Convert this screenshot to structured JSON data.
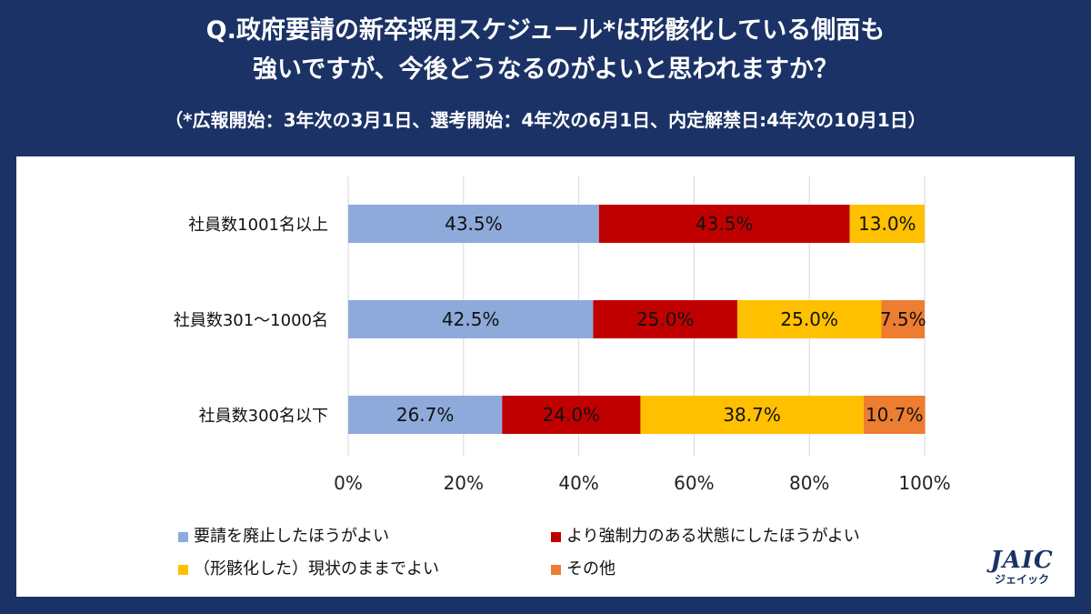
{
  "header": {
    "title_line1": "Q.政府要請の新卒採用スケジュール*は形骸化している側面も",
    "title_line2": "強いですが、今後どうなるのがよいと思われますか？",
    "subtitle": "（*広報開始：3年次の3月1日、選考開始：4年次の6月1日、内定解禁日:4年次の10月1日）"
  },
  "chart_data": {
    "type": "bar",
    "orientation": "horizontal",
    "stacked": true,
    "categories": [
      "社員数1001名以上",
      "社員数301～1000名",
      "社員数300名以下"
    ],
    "series": [
      {
        "name": "要請を廃止したほうがよい",
        "color": "#8eaadb",
        "values": [
          43.5,
          42.5,
          26.7
        ],
        "labels": [
          "43.5%",
          "42.5%",
          "26.7%"
        ]
      },
      {
        "name": "より強制力のある状態にしたほうがよい",
        "color": "#c00000",
        "values": [
          43.5,
          25.0,
          24.0
        ],
        "labels": [
          "43.5%",
          "25.0%",
          "24.0%"
        ]
      },
      {
        "name": "（形骸化した）現状のままでよい",
        "color": "#ffc000",
        "values": [
          13.0,
          25.0,
          38.7
        ],
        "labels": [
          "13.0%",
          "25.0%",
          "38.7%"
        ]
      },
      {
        "name": "その他",
        "color": "#ed7d31",
        "values": [
          0,
          7.5,
          10.7
        ],
        "labels": [
          "",
          "7.5%",
          "10.7%"
        ]
      }
    ],
    "xlim": [
      0,
      100
    ],
    "xticks": [
      "0%",
      "20%",
      "40%",
      "60%",
      "80%",
      "100%"
    ],
    "grid": true,
    "legend_position": "bottom"
  },
  "logo": {
    "text": "JAIC",
    "subtext": "ジェイック"
  }
}
